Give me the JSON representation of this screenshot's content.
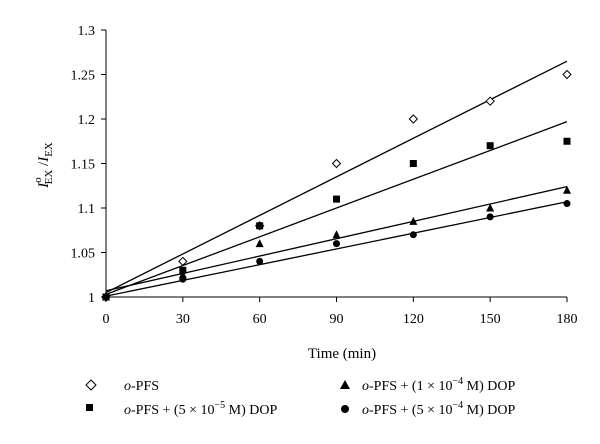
{
  "chart_data": {
    "type": "scatter",
    "title": "",
    "xlabel": "Time (min)",
    "ylabel": "I°EX / IEX",
    "xlim": [
      0,
      180
    ],
    "ylim": [
      1,
      1.3
    ],
    "x_ticks": [
      "0",
      "30",
      "60",
      "90",
      "120",
      "150",
      "180"
    ],
    "y_ticks": [
      "1",
      "1.05",
      "1.1",
      "1.15",
      "1.2",
      "1.25",
      "1.3"
    ],
    "grid": false,
    "legend_position": "bottom",
    "x": [
      0,
      30,
      60,
      90,
      120,
      150,
      180
    ],
    "series": [
      {
        "name": "o-PFS",
        "marker": "open-diamond",
        "values": [
          1.0,
          1.04,
          1.08,
          1.15,
          1.2,
          1.22,
          1.25
        ],
        "fit_line": [
          1.005,
          1.265
        ]
      },
      {
        "name": "o-PFS + (5 × 10−5 M) DOP",
        "marker": "filled-square",
        "values": [
          1.0,
          1.03,
          1.08,
          1.11,
          1.15,
          1.17,
          1.175
        ],
        "fit_line": [
          1.003,
          1.197
        ]
      },
      {
        "name": "o-PFS + (1 × 10−4 M) DOP",
        "marker": "filled-triangle",
        "values": [
          1.0,
          1.025,
          1.06,
          1.07,
          1.085,
          1.1,
          1.12
        ],
        "fit_line": [
          1.007,
          1.124
        ]
      },
      {
        "name": "o-PFS + (5 × 10−4 M) DOP",
        "marker": "filled-circle",
        "values": [
          1.0,
          1.02,
          1.04,
          1.06,
          1.07,
          1.09,
          1.105
        ],
        "fit_line": [
          1.001,
          1.107
        ]
      }
    ]
  },
  "legend": [
    {
      "prefix": "o",
      "rest": "-PFS"
    },
    {
      "prefix": "o",
      "rest": "-PFS + (5 × 10",
      "sup": "−5",
      "tail": " M) DOP"
    },
    {
      "prefix": "o",
      "rest": "-PFS + (1 × 10",
      "sup": "−4",
      "tail": " M) DOP"
    },
    {
      "prefix": "o",
      "rest": "-PFS + (5 × 10",
      "sup": "−4",
      "tail": " M) DOP"
    }
  ],
  "ylabel_parts": {
    "main": "I",
    "sup": "o",
    "sub": "EX",
    "sep": " /",
    "main2": "I",
    "sub2": "EX"
  }
}
